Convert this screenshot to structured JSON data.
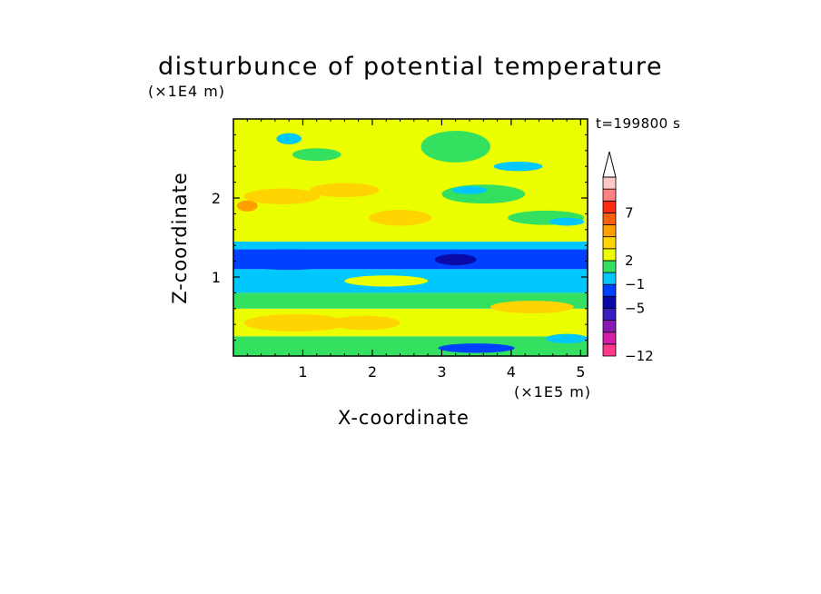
{
  "chart_data": {
    "type": "heatmap",
    "title": "disturbunce of potential temperature",
    "xlabel": "X-coordinate",
    "ylabel": "Z-coordinate",
    "x_unit_label": "(×1E5 m)",
    "y_unit_label": "(×1E4 m)",
    "time_label": "t=199800 s",
    "xlim": [
      0,
      5.1
    ],
    "ylim": [
      0,
      3.0
    ],
    "x_ticks": [
      "1",
      "2",
      "3",
      "4",
      "5"
    ],
    "x_tick_values": [
      1,
      2,
      3,
      4,
      5
    ],
    "y_ticks": [
      "1",
      "2"
    ],
    "y_tick_values": [
      1,
      2
    ],
    "colorbar": {
      "labels": [
        "7",
        "2",
        "−1",
        "−5",
        "−12"
      ],
      "label_levels": [
        7,
        2,
        -1,
        -5,
        -12
      ],
      "colors": [
        "#ff3a8c",
        "#d31fa8",
        "#8b18b4",
        "#3a1cc0",
        "#0a0aa8",
        "#0040ff",
        "#00c8ff",
        "#34e060",
        "#ecff00",
        "#ffd400",
        "#ffa000",
        "#ff6010",
        "#ff2a10",
        "#ff8080",
        "#ffc8c8"
      ],
      "extend_top": true
    },
    "bands": [
      {
        "z0": 0.0,
        "z1": 0.25,
        "color": "#34e060"
      },
      {
        "z0": 0.25,
        "z1": 0.6,
        "color": "#ecff00"
      },
      {
        "z0": 0.6,
        "z1": 0.8,
        "color": "#34e060"
      },
      {
        "z0": 0.8,
        "z1": 1.1,
        "color": "#00c8ff"
      },
      {
        "z0": 1.1,
        "z1": 1.35,
        "color": "#0040ff"
      },
      {
        "z0": 1.35,
        "z1": 1.45,
        "color": "#00c8ff"
      },
      {
        "z0": 1.45,
        "z1": 3.0,
        "color": "#ecff00"
      }
    ],
    "patches": [
      {
        "x": 0.9,
        "z": 0.42,
        "rx": 0.75,
        "rz": 0.11,
        "color": "#ffd400"
      },
      {
        "x": 1.9,
        "z": 0.42,
        "rx": 0.5,
        "rz": 0.09,
        "color": "#ffd400"
      },
      {
        "x": 0.8,
        "z": 1.22,
        "rx": 0.8,
        "rz": 0.13,
        "color": "#0040ff"
      },
      {
        "x": 3.2,
        "z": 1.22,
        "rx": 0.3,
        "rz": 0.07,
        "color": "#0a0aa8"
      },
      {
        "x": 0.7,
        "z": 2.02,
        "rx": 0.55,
        "rz": 0.1,
        "color": "#ffd400"
      },
      {
        "x": 1.6,
        "z": 2.1,
        "rx": 0.5,
        "rz": 0.09,
        "color": "#ffd400"
      },
      {
        "x": 2.4,
        "z": 1.75,
        "rx": 0.45,
        "rz": 0.1,
        "color": "#ffd400"
      },
      {
        "x": 3.6,
        "z": 2.05,
        "rx": 0.6,
        "rz": 0.12,
        "color": "#34e060"
      },
      {
        "x": 4.5,
        "z": 1.75,
        "rx": 0.55,
        "rz": 0.09,
        "color": "#34e060"
      },
      {
        "x": 3.2,
        "z": 2.65,
        "rx": 0.5,
        "rz": 0.2,
        "color": "#34e060"
      },
      {
        "x": 1.2,
        "z": 2.55,
        "rx": 0.35,
        "rz": 0.08,
        "color": "#34e060"
      },
      {
        "x": 0.8,
        "z": 2.75,
        "rx": 0.18,
        "rz": 0.07,
        "color": "#00c8ff"
      },
      {
        "x": 4.1,
        "z": 2.4,
        "rx": 0.35,
        "rz": 0.06,
        "color": "#00c8ff"
      },
      {
        "x": 3.4,
        "z": 2.1,
        "rx": 0.25,
        "rz": 0.05,
        "color": "#00c8ff"
      },
      {
        "x": 4.8,
        "z": 1.7,
        "rx": 0.25,
        "rz": 0.05,
        "color": "#00c8ff"
      },
      {
        "x": 4.8,
        "z": 0.22,
        "rx": 0.3,
        "rz": 0.06,
        "color": "#00c8ff"
      },
      {
        "x": 3.5,
        "z": 0.1,
        "rx": 0.55,
        "rz": 0.06,
        "color": "#0040ff"
      },
      {
        "x": 2.2,
        "z": 0.95,
        "rx": 0.6,
        "rz": 0.07,
        "color": "#ecff00"
      },
      {
        "x": 4.3,
        "z": 0.62,
        "rx": 0.6,
        "rz": 0.08,
        "color": "#ffd400"
      },
      {
        "x": 0.2,
        "z": 1.9,
        "rx": 0.15,
        "rz": 0.07,
        "color": "#ffa000"
      }
    ]
  }
}
